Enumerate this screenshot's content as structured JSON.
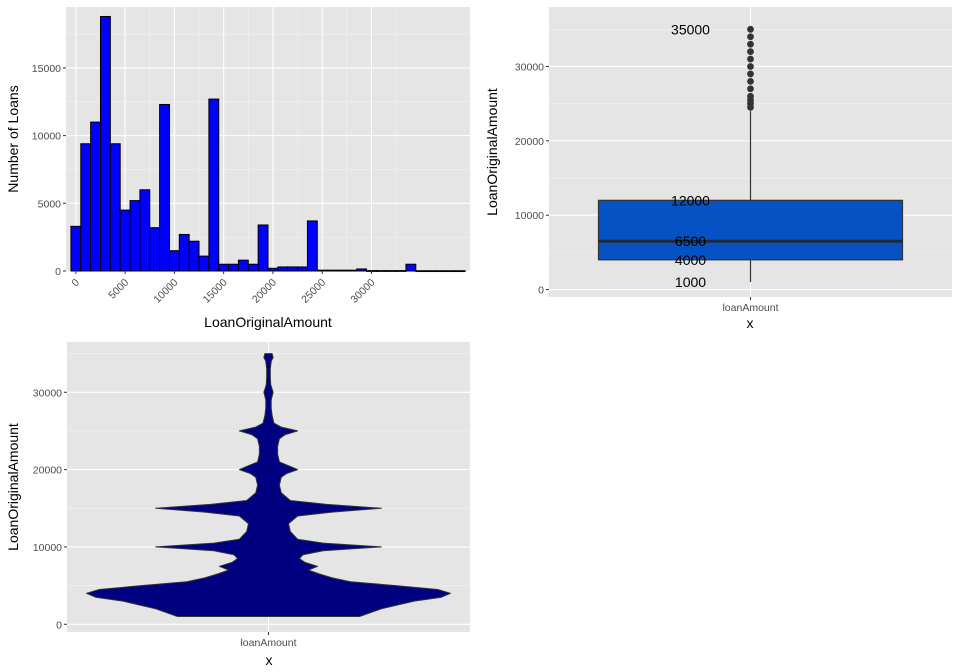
{
  "chart_data": [
    {
      "type": "bar",
      "subtype": "histogram",
      "xlabel": "LoanOriginalAmount",
      "ylabel": "Number of Loans",
      "x_ticks": [
        0,
        5000,
        10000,
        15000,
        20000,
        25000,
        30000
      ],
      "x_tick_labels": [
        "0",
        "5000",
        "10000",
        "15000",
        "20000",
        "25000",
        "30000"
      ],
      "y_ticks": [
        0,
        5000,
        10000,
        15000
      ],
      "y_tick_labels": [
        "0",
        "5000",
        "10000",
        "15000"
      ],
      "xlim": [
        -1000,
        40000
      ],
      "ylim": [
        0,
        19500
      ],
      "bin_width": 1000,
      "bins_start": [
        0,
        1000,
        2000,
        3000,
        4000,
        5000,
        6000,
        7000,
        8000,
        9000,
        10000,
        11000,
        12000,
        13000,
        14000,
        15000,
        16000,
        17000,
        18000,
        19000,
        20000,
        21000,
        22000,
        23000,
        24000,
        25000,
        26000,
        27000,
        28000,
        29000,
        30000,
        31000,
        32000,
        33000,
        34000,
        35000,
        36000,
        37000,
        38000,
        39000
      ],
      "values": [
        3300,
        9400,
        11000,
        18800,
        9400,
        4500,
        5200,
        6000,
        3200,
        12300,
        1500,
        2700,
        2200,
        1100,
        12700,
        500,
        500,
        800,
        500,
        3400,
        200,
        300,
        300,
        300,
        3700,
        60,
        60,
        60,
        60,
        150,
        30,
        30,
        30,
        30,
        500,
        20,
        20,
        20,
        20,
        20
      ],
      "fill": "#0000ff",
      "grid": true
    },
    {
      "type": "box",
      "xlabel": "x",
      "ylabel": "LoanOriginalAmount",
      "categories": [
        "loanAmount"
      ],
      "y_ticks": [
        0,
        10000,
        20000,
        30000
      ],
      "y_tick_labels": [
        "0",
        "10000",
        "20000",
        "30000"
      ],
      "ylim": [
        -1000,
        38000
      ],
      "stats": {
        "min": 1000,
        "q1": 4000,
        "median": 6500,
        "q3": 12000,
        "whisker_high": 24000,
        "max": 35000
      },
      "outliers": [
        24500,
        25000,
        25500,
        26000,
        27000,
        28000,
        29000,
        30000,
        31000,
        32000,
        33000,
        34000,
        35000
      ],
      "annotations": [
        {
          "value": 35000,
          "label": "35000"
        },
        {
          "value": 12000,
          "label": "12000"
        },
        {
          "value": 6500,
          "label": "6500"
        },
        {
          "value": 4000,
          "label": "4000"
        },
        {
          "value": 1000,
          "label": "1000"
        }
      ],
      "fill": "#0652c5",
      "grid": true
    },
    {
      "type": "violin",
      "xlabel": "x",
      "ylabel": "LoanOriginalAmount",
      "categories": [
        "loanAmount"
      ],
      "y_ticks": [
        0,
        10000,
        20000,
        30000
      ],
      "y_tick_labels": [
        "0",
        "10000",
        "20000",
        "30000"
      ],
      "ylim": [
        -1000,
        36500
      ],
      "density_profile": [
        [
          1000,
          0.5
        ],
        [
          2000,
          0.62
        ],
        [
          3000,
          0.8
        ],
        [
          3500,
          0.95
        ],
        [
          4000,
          1.0
        ],
        [
          4500,
          0.93
        ],
        [
          5000,
          0.7
        ],
        [
          5500,
          0.45
        ],
        [
          6000,
          0.35
        ],
        [
          6500,
          0.28
        ],
        [
          7000,
          0.22
        ],
        [
          7500,
          0.27
        ],
        [
          8000,
          0.2
        ],
        [
          8500,
          0.17
        ],
        [
          9000,
          0.19
        ],
        [
          9500,
          0.3
        ],
        [
          10000,
          0.62
        ],
        [
          10500,
          0.3
        ],
        [
          11000,
          0.16
        ],
        [
          12000,
          0.12
        ],
        [
          13000,
          0.11
        ],
        [
          14000,
          0.16
        ],
        [
          14500,
          0.35
        ],
        [
          15000,
          0.62
        ],
        [
          15500,
          0.32
        ],
        [
          16000,
          0.12
        ],
        [
          17000,
          0.07
        ],
        [
          18000,
          0.06
        ],
        [
          19000,
          0.07
        ],
        [
          19500,
          0.1
        ],
        [
          20000,
          0.16
        ],
        [
          20500,
          0.11
        ],
        [
          21000,
          0.06
        ],
        [
          22000,
          0.05
        ],
        [
          23000,
          0.05
        ],
        [
          24000,
          0.06
        ],
        [
          24500,
          0.09
        ],
        [
          25000,
          0.16
        ],
        [
          25500,
          0.07
        ],
        [
          26000,
          0.03
        ],
        [
          27000,
          0.02
        ],
        [
          28000,
          0.015
        ],
        [
          29000,
          0.015
        ],
        [
          30000,
          0.025
        ],
        [
          31000,
          0.012
        ],
        [
          32000,
          0.01
        ],
        [
          33000,
          0.01
        ],
        [
          34000,
          0.015
        ],
        [
          34500,
          0.025
        ],
        [
          35000,
          0.02
        ],
        [
          35000,
          0.0
        ]
      ],
      "fill": "#000080",
      "grid": true
    }
  ]
}
